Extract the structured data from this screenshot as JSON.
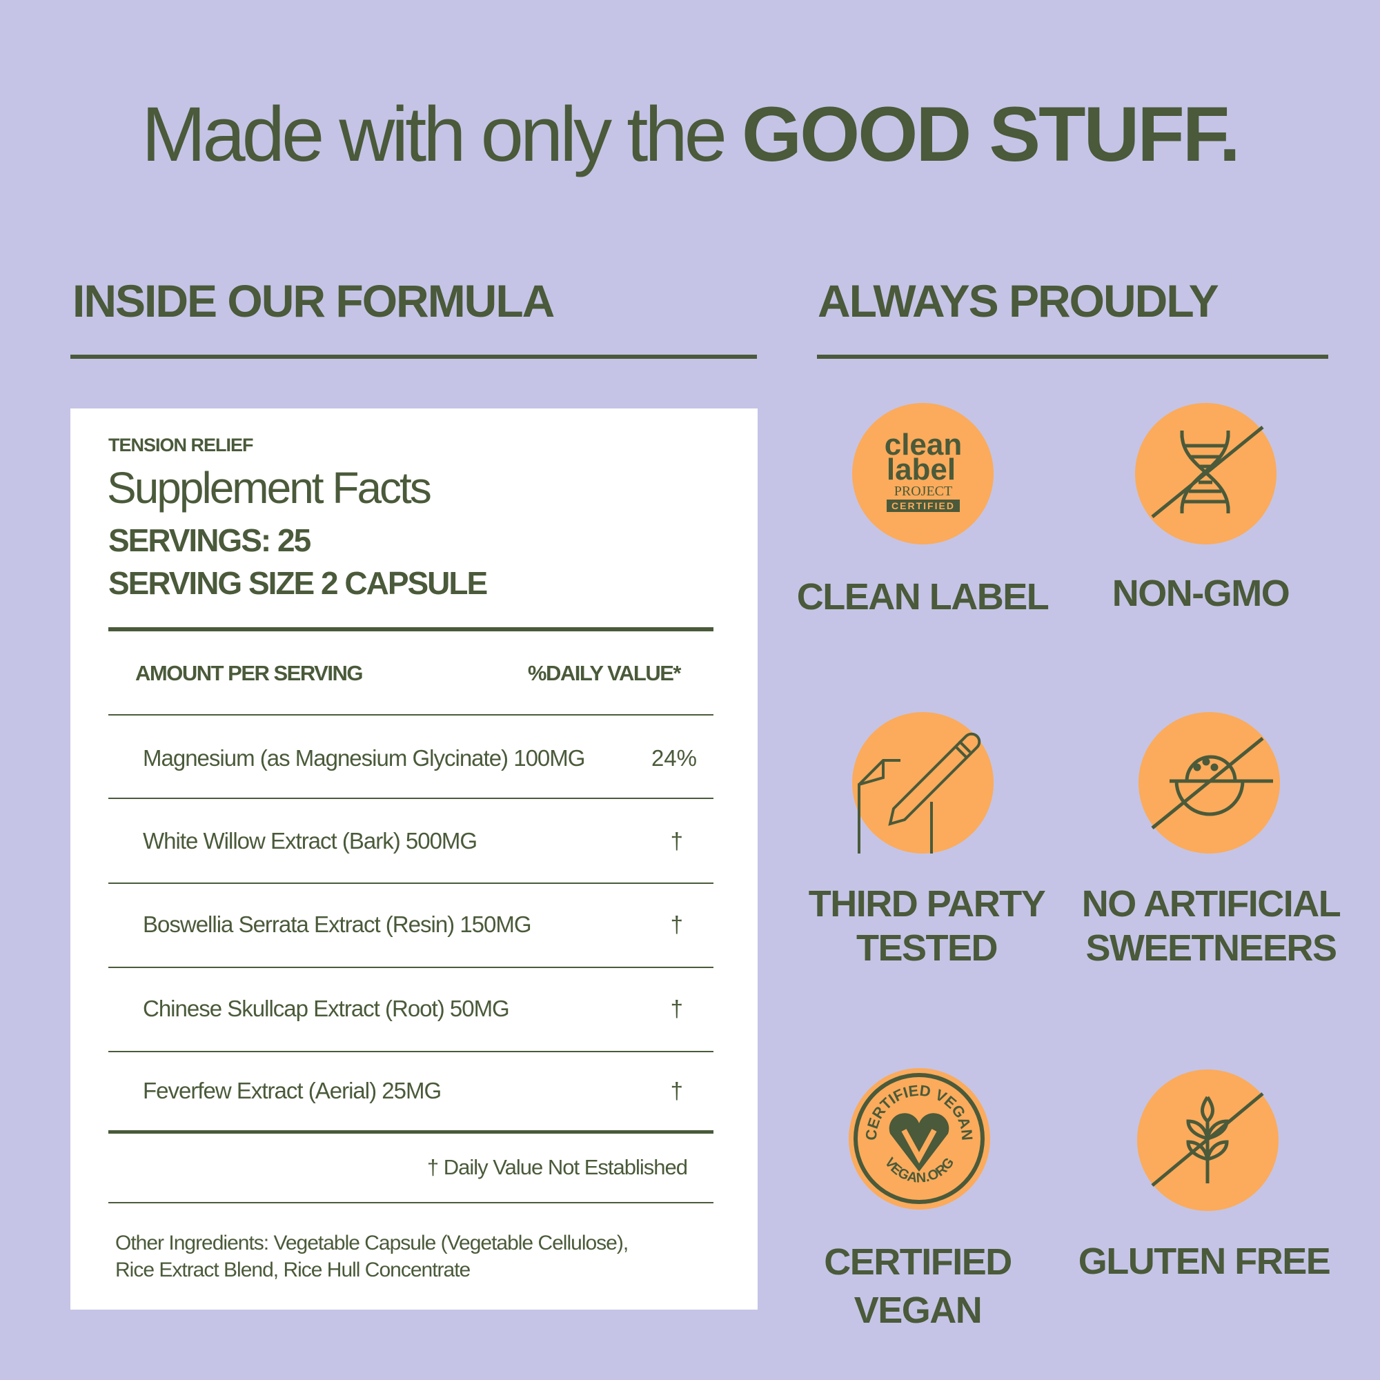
{
  "headline": {
    "regular": "Made with only the ",
    "bold": "GOOD STUFF."
  },
  "left_section": {
    "title": "INSIDE OUR FORMULA"
  },
  "right_section": {
    "title": "ALWAYS PROUDLY"
  },
  "supplement_facts": {
    "product": "TENSION RELIEF",
    "title": "Supplement Facts",
    "servings": "SERVINGS: 25",
    "serving_size": "SERVING SIZE 2 CAPSULE",
    "header_amount": "AMOUNT PER SERVING",
    "header_dv": "%DAILY VALUE*",
    "rows": [
      {
        "name": "Magnesium (as Magnesium Glycinate) 100MG",
        "dv": "24%"
      },
      {
        "name": "White Willow Extract (Bark) 500MG",
        "dv": "†"
      },
      {
        "name": "Boswellia Serrata Extract (Resin) 150MG",
        "dv": "†"
      },
      {
        "name": "Chinese Skullcap Extract (Root) 50MG",
        "dv": "†"
      },
      {
        "name": "Feverfew Extract (Aerial) 25MG",
        "dv": "†"
      }
    ],
    "footnote_mark": "†",
    "footnote": " Daily Value Not Established",
    "other_ingredients_1": "Other Ingredients: Vegetable Capsule (Vegetable Cellulose),",
    "other_ingredients_2": "Rice Extract Blend, Rice Hull Concentrate"
  },
  "badges": [
    {
      "icon": "clean-label-project-logo",
      "label_1": "CLEAN LABEL",
      "label_2": "",
      "logo_text": [
        "clean",
        "label",
        "PROJECT",
        "CERTIFIED"
      ]
    },
    {
      "icon": "no-dna-icon",
      "label_1": "NON-GMO",
      "label_2": ""
    },
    {
      "icon": "document-pencil-icon",
      "label_1": "THIRD PARTY",
      "label_2": "TESTED"
    },
    {
      "icon": "no-sugar-bowl-icon",
      "label_1": "NO ARTIFICIAL",
      "label_2": "SWEETNEERS"
    },
    {
      "icon": "certified-vegan-logo",
      "label_1": "CERTIFIED",
      "label_2": "VEGAN",
      "logo_text": [
        "CERTIFIED VEGAN",
        "VEGAN.ORG"
      ]
    },
    {
      "icon": "no-wheat-icon",
      "label_1": "GLUTEN FREE",
      "label_2": ""
    }
  ],
  "colors": {
    "background": "#c5c4e6",
    "text_green": "#4a5a3a",
    "badge_orange": "#fbab5b",
    "card": "#ffffff"
  }
}
